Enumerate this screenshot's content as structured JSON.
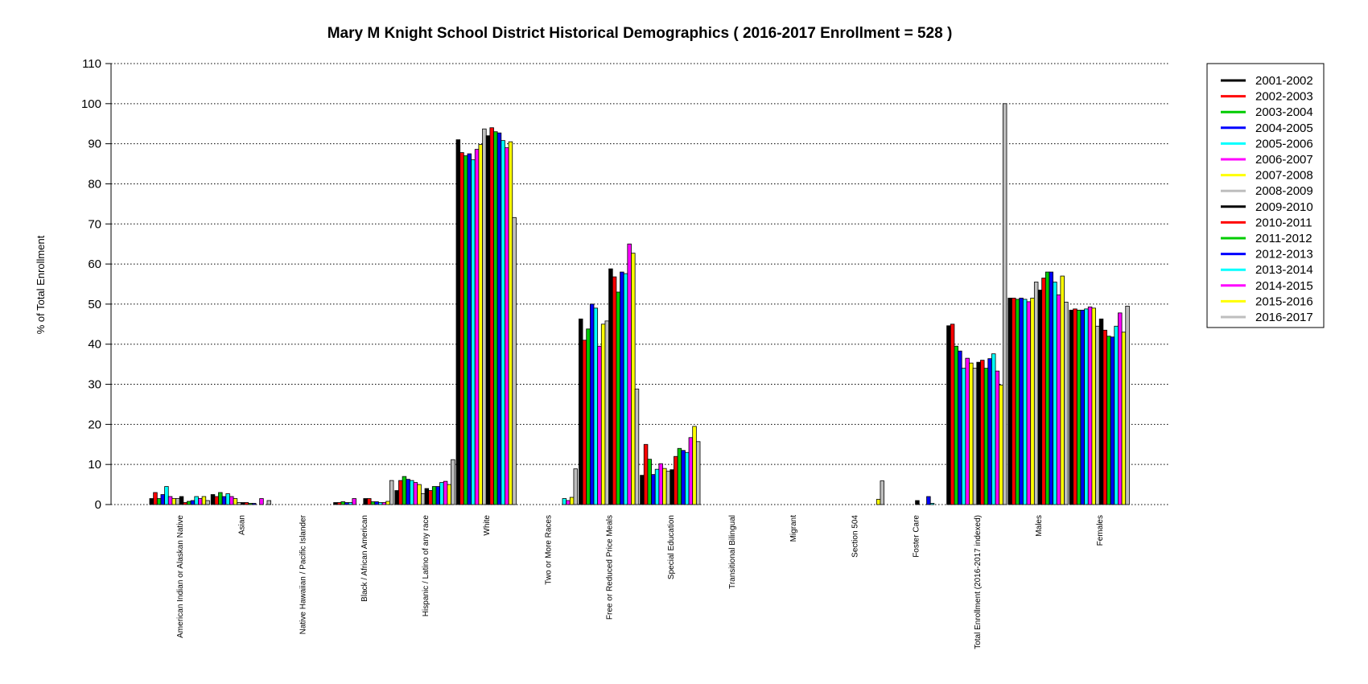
{
  "chart_data": {
    "type": "bar",
    "title": "Mary M Knight School District Historical Demographics  ( 2016-2017 Enrollment =  528 )",
    "xlabel": "",
    "ylabel": "% of Total Enrollment",
    "ylim": [
      0,
      110
    ],
    "yticks": [
      0,
      10,
      20,
      30,
      40,
      50,
      60,
      70,
      80,
      90,
      100,
      110
    ],
    "grid": "horizontal dotted",
    "legend_position": "right",
    "categories": [
      "American Indian or Alaskan Native",
      "Asian",
      "Native Hawaiian / Pacific Islander",
      "Black / African American",
      "Hispanic / Latino of any race",
      "White",
      "Two or More Races",
      "Free or Reduced Price Meals",
      "Special Education",
      "Transitional Bilingual",
      "Migrant",
      "Section 504",
      "Foster Care",
      "Total Enrollment (2016-2017 indexed)",
      "Males",
      "Females"
    ],
    "series": [
      {
        "name": "2001-2002",
        "color": "#000000",
        "values": [
          1.5,
          2.5,
          0,
          0.5,
          3.5,
          91,
          0,
          46.3,
          7.3,
          0,
          0,
          0,
          0,
          44.6,
          51.5,
          48.5
        ]
      },
      {
        "name": "2002-2003",
        "color": "#ff0000",
        "values": [
          3,
          2,
          0,
          0.5,
          6,
          87.8,
          0,
          41,
          15,
          0,
          0,
          0,
          0,
          45,
          51.5,
          48.8
        ]
      },
      {
        "name": "2003-2004",
        "color": "#00cc00",
        "values": [
          1.5,
          3,
          0,
          0.7,
          7,
          87,
          0,
          43.8,
          11.3,
          0,
          0,
          0,
          0,
          39.5,
          51.2,
          48.5
        ]
      },
      {
        "name": "2004-2005",
        "color": "#0000ff",
        "values": [
          2.5,
          2,
          0,
          0.5,
          6.3,
          87.5,
          0,
          50,
          7.5,
          0,
          0,
          0,
          0,
          38.3,
          51.5,
          48.5
        ]
      },
      {
        "name": "2005-2006",
        "color": "#00ffff",
        "values": [
          4.5,
          2.7,
          0,
          0.5,
          6,
          86,
          0,
          49,
          8.8,
          0,
          0,
          0,
          0,
          34,
          51.2,
          48.8
        ]
      },
      {
        "name": "2006-2007",
        "color": "#ff00ff",
        "values": [
          2,
          2,
          0,
          1.5,
          5.5,
          88.6,
          0,
          39.5,
          10.2,
          0,
          0,
          0,
          0,
          36.5,
          50.6,
          49.3
        ]
      },
      {
        "name": "2007-2008",
        "color": "#ffff00",
        "values": [
          1.5,
          1.5,
          0,
          0,
          5,
          89.8,
          0,
          45,
          9,
          0,
          0,
          0,
          0,
          35.3,
          51.5,
          49
        ]
      },
      {
        "name": "2008-2009",
        "color": "#bebebe",
        "values": [
          1.5,
          0.5,
          0,
          0,
          2.7,
          93.7,
          0,
          45.8,
          8.3,
          0,
          0,
          0,
          0,
          34,
          55.5,
          44.5
        ]
      },
      {
        "name": "2009-2010",
        "color": "#000000",
        "values": [
          2,
          0.5,
          0,
          1.5,
          4,
          92,
          0,
          58.8,
          8.7,
          0,
          0,
          0,
          1,
          35.5,
          53.5,
          46.3
        ]
      },
      {
        "name": "2010-2011",
        "color": "#ff0000",
        "values": [
          0.5,
          0.5,
          0,
          1.5,
          3.5,
          94,
          0,
          56.8,
          12,
          0,
          0,
          0,
          0,
          36,
          56.5,
          43.5
        ]
      },
      {
        "name": "2011-2012",
        "color": "#00cc00",
        "values": [
          0.8,
          0.3,
          0,
          0.7,
          4.5,
          93,
          0,
          53,
          14,
          0,
          0,
          0,
          0,
          34,
          58,
          42
        ]
      },
      {
        "name": "2012-2013",
        "color": "#0000ff",
        "values": [
          1,
          0.3,
          0,
          0.7,
          4.5,
          92.7,
          0,
          58,
          13.5,
          0,
          0,
          0,
          2,
          36.4,
          58,
          41.8
        ]
      },
      {
        "name": "2013-2014",
        "color": "#00ffff",
        "values": [
          2,
          0,
          0,
          0.5,
          5.5,
          90.8,
          1.5,
          57.6,
          13,
          0,
          0,
          0,
          0.3,
          37.6,
          55.5,
          44.5
        ]
      },
      {
        "name": "2014-2015",
        "color": "#ff00ff",
        "values": [
          1.5,
          1.5,
          0,
          0.5,
          5.8,
          89,
          1,
          65,
          16.7,
          0,
          0,
          0,
          0,
          33.3,
          52.3,
          47.8
        ]
      },
      {
        "name": "2015-2016",
        "color": "#ffff00",
        "values": [
          2,
          0,
          0,
          0.8,
          5,
          90.5,
          1.8,
          62.7,
          19.5,
          0,
          0,
          1.3,
          0,
          29.8,
          57,
          43
        ]
      },
      {
        "name": "2016-2017",
        "color": "#bebebe",
        "values": [
          1,
          1,
          0,
          6,
          11.2,
          71.6,
          8.9,
          28.8,
          15.7,
          0,
          0,
          5.9,
          0,
          100,
          50.5,
          49.5
        ]
      }
    ]
  }
}
